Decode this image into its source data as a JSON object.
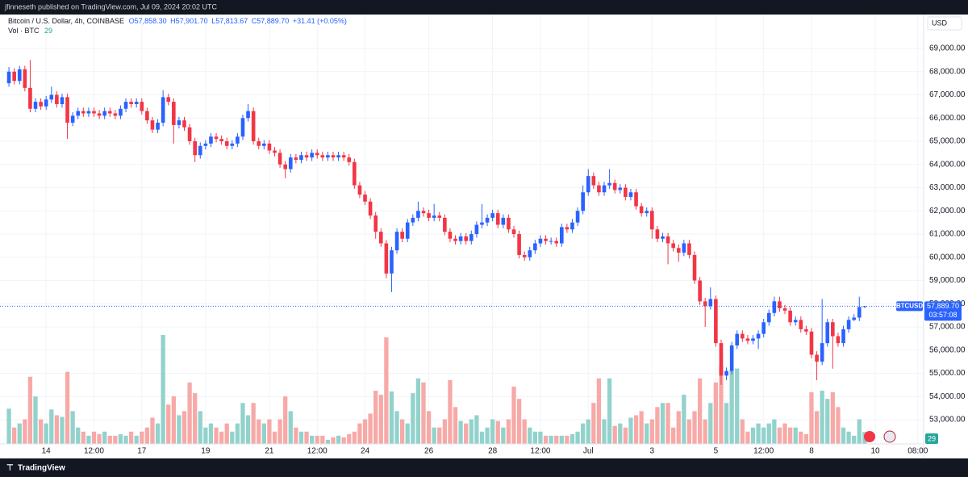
{
  "header": "jfinneseth published on TradingView.com, Jul 09, 2024 20:02 UTC",
  "footer": "TradingView",
  "chart_data": {
    "type": "candlestick",
    "title": "Bitcoin / U.S. Dollar, 4h, COINBASE",
    "legend_values": [
      "O57,858.30",
      "H57,901.70",
      "L57,813.67",
      "C57,889.70",
      "+31.41 (+0.05%)"
    ],
    "volume_title": "Vol · BTC",
    "volume_label": "29",
    "currency": "USD",
    "symbol": "BTCUSD",
    "price_label": "57,889.70",
    "countdown": "03:57:08",
    "up_color": "#2962ff",
    "down_color": "#f23645",
    "volume_up_color": "#92d2cc",
    "volume_down_color": "#f7a9a7",
    "grid": true,
    "xlim": [
      -1.68,
      172.1
    ],
    "ylim": [
      51957,
      70461
    ],
    "xticks": [
      {
        "value": 7,
        "label": "14"
      },
      {
        "value": 16,
        "label": "12:00"
      },
      {
        "value": 25,
        "label": "17"
      },
      {
        "value": 37,
        "label": "19"
      },
      {
        "value": 49,
        "label": "21"
      },
      {
        "value": 58,
        "label": "12:00"
      },
      {
        "value": 67,
        "label": "24"
      },
      {
        "value": 79,
        "label": "26"
      },
      {
        "value": 91,
        "label": "28"
      },
      {
        "value": 100,
        "label": "12:00"
      },
      {
        "value": 109,
        "label": "Jul"
      },
      {
        "value": 121,
        "label": "3"
      },
      {
        "value": 133,
        "label": "5"
      },
      {
        "value": 142,
        "label": "12:00"
      },
      {
        "value": 151,
        "label": "8"
      },
      {
        "value": 163,
        "label": "10"
      },
      {
        "value": 171,
        "label": "08:00"
      }
    ],
    "yticks": [
      {
        "value": 53000,
        "label": "53,000.00"
      },
      {
        "value": 54000,
        "label": "54,000.00"
      },
      {
        "value": 55000,
        "label": "55,000.00"
      },
      {
        "value": 56000,
        "label": "56,000.00"
      },
      {
        "value": 57000,
        "label": "57,000.00"
      },
      {
        "value": 58000,
        "label": "58,000.00"
      },
      {
        "value": 59000,
        "label": "59,000.00"
      },
      {
        "value": 60000,
        "label": "60,000.00"
      },
      {
        "value": 61000,
        "label": "61,000.00"
      },
      {
        "value": 62000,
        "label": "62,000.00"
      },
      {
        "value": 63000,
        "label": "63,000.00"
      },
      {
        "value": 64000,
        "label": "64,000.00"
      },
      {
        "value": 65000,
        "label": "65,000.00"
      },
      {
        "value": 66000,
        "label": "66,000.00"
      },
      {
        "value": 67000,
        "label": "67,000.00"
      },
      {
        "value": 68000,
        "label": "68,000.00"
      },
      {
        "value": 69000,
        "label": "69,000.00"
      }
    ],
    "open": [
      67500,
      68000,
      67600,
      68100,
      67300,
      66400,
      66700,
      66500,
      66800,
      67000,
      66600,
      66900,
      65800,
      66100,
      66300,
      66200,
      66300,
      66200,
      66100,
      66300,
      66200,
      66100,
      66400,
      66700,
      66600,
      66700,
      66300,
      65900,
      65500,
      65800,
      66900,
      66700,
      65700,
      65900,
      65600,
      65000,
      64400,
      64800,
      64900,
      65200,
      65100,
      65000,
      64800,
      64900,
      65200,
      66000,
      66300,
      65000,
      64800,
      64900,
      64600,
      64500,
      64000,
      63800,
      64300,
      64200,
      64400,
      64300,
      64500,
      64400,
      64300,
      64400,
      64300,
      64400,
      64300,
      64100,
      63100,
      62700,
      62400,
      61800,
      61100,
      60600,
      59300,
      60300,
      61100,
      60800,
      61500,
      61700,
      62000,
      61900,
      61700,
      61800,
      61700,
      61100,
      60800,
      60700,
      60900,
      60700,
      61000,
      61400,
      61500,
      61700,
      61900,
      61400,
      61700,
      61200,
      61000,
      60100,
      60000,
      60300,
      60600,
      60800,
      60700,
      60700,
      60600,
      61300,
      61200,
      61500,
      62000,
      62800,
      63500,
      63100,
      62800,
      63100,
      63200,
      62900,
      63000,
      62600,
      62800,
      62200,
      61900,
      62000,
      61200,
      60800,
      60900,
      60600,
      60400,
      60200,
      60600,
      60100,
      59000,
      58100,
      57900,
      58200,
      56300,
      54900,
      55100,
      56200,
      56700,
      56500,
      56400,
      56500,
      56700,
      57200,
      57600,
      58100,
      57800,
      57700,
      57200,
      57300,
      56900,
      56800,
      55800,
      55500,
      56300,
      57200,
      56600,
      56300,
      56900,
      57300,
      57400,
      57858.3
    ],
    "high": [
      68200,
      68150,
      68250,
      68250,
      68500,
      66850,
      66850,
      66950,
      67350,
      67150,
      67050,
      67050,
      66250,
      66450,
      66450,
      66450,
      66450,
      66350,
      66450,
      66450,
      66350,
      66550,
      66850,
      66850,
      66850,
      66850,
      66450,
      66050,
      65950,
      67200,
      67050,
      66850,
      66050,
      66050,
      65750,
      65150,
      64950,
      65050,
      65350,
      65350,
      65250,
      65150,
      65050,
      65350,
      66150,
      66600,
      66450,
      65150,
      65050,
      65050,
      64750,
      64650,
      64150,
      64450,
      64450,
      64550,
      64550,
      64650,
      64650,
      64550,
      64550,
      64550,
      64550,
      64550,
      64450,
      64250,
      63250,
      62850,
      62550,
      61950,
      61250,
      60750,
      60450,
      61250,
      61250,
      61650,
      61850,
      62400,
      62150,
      62050,
      62300,
      61950,
      61850,
      61250,
      60950,
      61050,
      61050,
      61150,
      61550,
      62300,
      61850,
      62050,
      62050,
      61850,
      61850,
      61350,
      61150,
      60250,
      60450,
      60750,
      60950,
      60950,
      60850,
      60850,
      61450,
      61450,
      61650,
      62150,
      63100,
      63800,
      63650,
      63250,
      63250,
      63800,
      63350,
      63150,
      63150,
      62950,
      62950,
      62350,
      62150,
      62150,
      61350,
      61050,
      61050,
      60750,
      60550,
      60750,
      60750,
      60250,
      59150,
      58250,
      58700,
      58350,
      56450,
      55250,
      56350,
      56850,
      56850,
      56650,
      56650,
      56850,
      57350,
      57750,
      58300,
      58300,
      57950,
      57850,
      57450,
      57450,
      57050,
      56950,
      55950,
      58200,
      57350,
      57350,
      56750,
      57050,
      57450,
      57550,
      58300,
      57901.7
    ],
    "low": [
      67350,
      67450,
      67450,
      67150,
      66250,
      66250,
      66350,
      66350,
      66650,
      66450,
      66450,
      65100,
      65650,
      65950,
      66050,
      66050,
      66050,
      65950,
      65950,
      66050,
      65950,
      65950,
      66250,
      66450,
      66450,
      66150,
      65750,
      65350,
      65350,
      65650,
      66550,
      64900,
      65550,
      65450,
      64850,
      64100,
      64250,
      64650,
      64750,
      64950,
      64850,
      64650,
      64650,
      64750,
      65050,
      65850,
      64850,
      64650,
      64650,
      64450,
      64350,
      63850,
      63400,
      63650,
      64050,
      64050,
      64150,
      64150,
      64250,
      64150,
      64150,
      64150,
      64150,
      64150,
      63950,
      62950,
      62550,
      62250,
      61650,
      60800,
      60450,
      59100,
      58500,
      60150,
      60650,
      60650,
      61350,
      61550,
      61750,
      61550,
      61550,
      61550,
      60950,
      60650,
      60550,
      60550,
      60550,
      60550,
      60850,
      61250,
      61350,
      61550,
      61250,
      61250,
      61050,
      60850,
      59950,
      59850,
      59850,
      60150,
      60450,
      60550,
      60550,
      60450,
      60450,
      61050,
      61050,
      61350,
      61850,
      62650,
      62950,
      62650,
      62650,
      62950,
      62750,
      62750,
      62450,
      62450,
      62050,
      61750,
      61750,
      60800,
      60650,
      60650,
      59700,
      60250,
      59800,
      60050,
      59950,
      58850,
      57950,
      57000,
      57750,
      56150,
      54500,
      54700,
      54950,
      56050,
      56350,
      56250,
      56250,
      56050,
      56550,
      57050,
      57450,
      57650,
      57550,
      57050,
      57050,
      56750,
      56650,
      55650,
      54700,
      55350,
      56150,
      55200,
      56150,
      56150,
      56750,
      57250,
      57250,
      57813.67
    ],
    "close": [
      68000,
      67600,
      68100,
      67300,
      66400,
      66700,
      66500,
      66800,
      67000,
      66600,
      66900,
      65800,
      66100,
      66300,
      66200,
      66300,
      66200,
      66100,
      66300,
      66200,
      66100,
      66400,
      66700,
      66600,
      66700,
      66300,
      65900,
      65500,
      65800,
      66900,
      66700,
      65700,
      65900,
      65600,
      65000,
      64400,
      64800,
      64900,
      65200,
      65100,
      65000,
      64800,
      64900,
      65200,
      66000,
      66300,
      65000,
      64800,
      64900,
      64600,
      64500,
      64000,
      63800,
      64300,
      64200,
      64400,
      64300,
      64500,
      64400,
      64300,
      64400,
      64300,
      64400,
      64300,
      64100,
      63100,
      62700,
      62400,
      61800,
      61100,
      60600,
      59300,
      60300,
      61100,
      60800,
      61500,
      61700,
      62000,
      61900,
      61700,
      61800,
      61700,
      61100,
      60800,
      60700,
      60900,
      60700,
      61000,
      61400,
      61500,
      61700,
      61900,
      61400,
      61700,
      61200,
      61000,
      60100,
      60000,
      60300,
      60600,
      60800,
      60700,
      60700,
      60600,
      61300,
      61200,
      61500,
      62000,
      62800,
      63500,
      63100,
      62800,
      63100,
      63200,
      62900,
      63000,
      62600,
      62800,
      62200,
      61900,
      62000,
      61200,
      60800,
      60900,
      60600,
      60400,
      60200,
      60600,
      60100,
      59000,
      58100,
      57900,
      58200,
      56300,
      54900,
      55100,
      56200,
      56700,
      56500,
      56400,
      56500,
      56700,
      57200,
      57600,
      58100,
      57800,
      57700,
      57200,
      57300,
      56900,
      56800,
      55800,
      55500,
      56300,
      57200,
      56600,
      56300,
      56900,
      57300,
      57400,
      57858.3,
      57889.7
    ],
    "volume": [
      86,
      40,
      50,
      60,
      164,
      116,
      60,
      50,
      84,
      70,
      66,
      176,
      80,
      40,
      30,
      20,
      30,
      24,
      30,
      20,
      20,
      24,
      20,
      30,
      20,
      30,
      40,
      64,
      50,
      266,
      96,
      116,
      70,
      80,
      150,
      124,
      80,
      40,
      50,
      40,
      30,
      50,
      30,
      50,
      100,
      70,
      100,
      60,
      50,
      60,
      30,
      60,
      116,
      80,
      40,
      30,
      30,
      20,
      20,
      20,
      10,
      16,
      20,
      16,
      24,
      30,
      50,
      60,
      74,
      130,
      120,
      260,
      128,
      80,
      60,
      50,
      124,
      160,
      150,
      80,
      40,
      40,
      60,
      156,
      90,
      56,
      50,
      60,
      70,
      30,
      40,
      60,
      56,
      40,
      60,
      140,
      110,
      60,
      40,
      30,
      30,
      20,
      20,
      20,
      20,
      20,
      24,
      30,
      50,
      60,
      100,
      160,
      60,
      160,
      44,
      50,
      40,
      64,
      70,
      80,
      50,
      60,
      90,
      100,
      100,
      40,
      80,
      120,
      60,
      80,
      160,
      60,
      100,
      150,
      190,
      100,
      180,
      184,
      60,
      30,
      40,
      50,
      40,
      50,
      60,
      40,
      50,
      40,
      40,
      30,
      24,
      126,
      80,
      130,
      110,
      126,
      90,
      40,
      30,
      20,
      60,
      29
    ]
  }
}
